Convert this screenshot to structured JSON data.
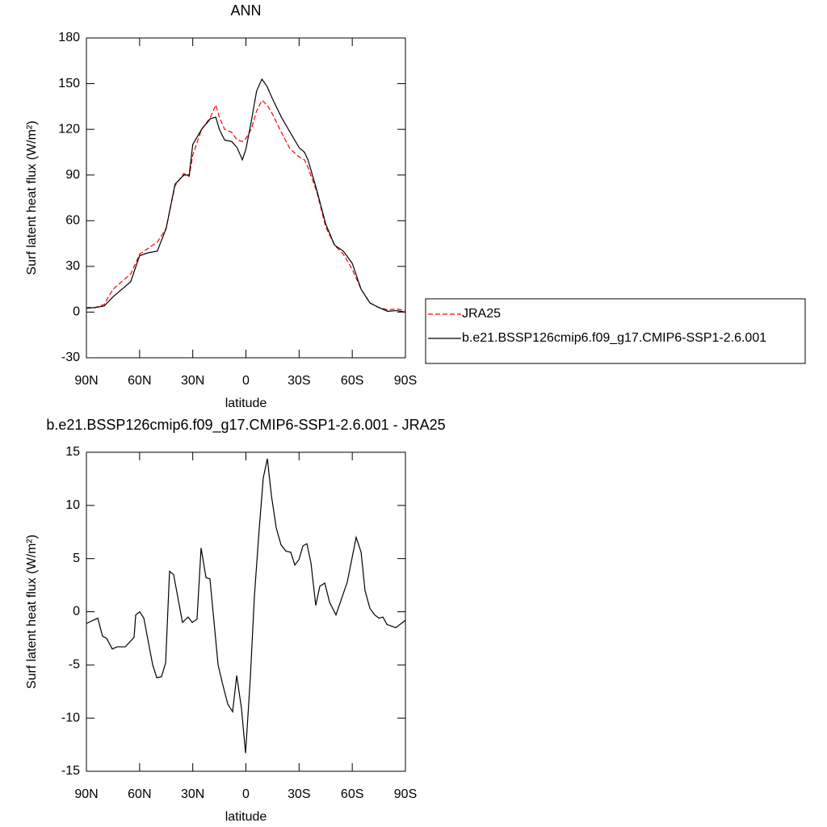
{
  "chart_data": [
    {
      "type": "line",
      "title": "ANN",
      "xlabel": "latitude",
      "ylabel": "Surf latent heat flux (W/m²)",
      "x": [
        90,
        85,
        80,
        75,
        70,
        65,
        60,
        55,
        50,
        45,
        40,
        35,
        32,
        30,
        25,
        20,
        17,
        15,
        12,
        8,
        5,
        2,
        0,
        -3,
        -6,
        -9,
        -12,
        -15,
        -20,
        -25,
        -30,
        -33,
        -35,
        -40,
        -45,
        -50,
        -55,
        -60,
        -65,
        -70,
        -75,
        -80,
        -85,
        -90
      ],
      "series": [
        {
          "name": "JRA25",
          "color": "#ff0000",
          "style": "dashed",
          "values": [
            3,
            3,
            5,
            15,
            20,
            25,
            38,
            42,
            46,
            55,
            83,
            91,
            89,
            103,
            120,
            128,
            136,
            128,
            120,
            118,
            113,
            112,
            114,
            120,
            132,
            139,
            136,
            130,
            118,
            107,
            102,
            100,
            95,
            79,
            56,
            44,
            38,
            28,
            15,
            6,
            3,
            1.5,
            2,
            1
          ]
        },
        {
          "name": "b.e21.BSSP126cmip6.f09_g17.CMIP6-SSP1-2.6.001",
          "color": "#000000",
          "style": "solid",
          "values": [
            2.5,
            3,
            4,
            10,
            15,
            20,
            37,
            39,
            40,
            55,
            84,
            90,
            90,
            110,
            120,
            127,
            128,
            120,
            113,
            112,
            108,
            100,
            107,
            125,
            145,
            153,
            148,
            140,
            128,
            118,
            108,
            105,
            100,
            80,
            58,
            44,
            40,
            32,
            15,
            6,
            3,
            0.5,
            1,
            0
          ]
        }
      ],
      "xlim": [
        90,
        -90
      ],
      "ylim": [
        -30,
        180
      ],
      "xticks": [
        {
          "value": 90,
          "label": "90N"
        },
        {
          "value": 60,
          "label": "60N"
        },
        {
          "value": 30,
          "label": "30N"
        },
        0,
        {
          "value": -30,
          "label": "30S"
        },
        {
          "value": -60,
          "label": "60S"
        },
        {
          "value": -90,
          "label": "90S"
        }
      ],
      "yticks": [
        -30,
        0,
        30,
        60,
        90,
        120,
        150,
        180
      ],
      "legend": "right"
    },
    {
      "type": "line",
      "title": "b.e21.BSSP126cmip6.f09_g17.CMIP6-SSP1-2.6.001 - JRA25",
      "xlabel": "latitude",
      "ylabel": "Surf latent heat flux (W/m²)",
      "x": [
        90,
        83.6,
        80.9,
        78.6,
        75.4,
        72.7,
        68.1,
        63.1,
        62.2,
        59.9,
        57.6,
        52.6,
        50.3,
        47.6,
        45.3,
        43.1,
        40.8,
        35.8,
        32.6,
        30.3,
        27.6,
        25.3,
        22.5,
        20.3,
        15.7,
        13,
        10.2,
        7.5,
        5.2,
        2.5,
        0.2,
        -2.5,
        -4.8,
        -7.5,
        -9.8,
        -12.1,
        -14.4,
        -17.1,
        -19.8,
        -22.6,
        -25.3,
        -27.6,
        -29.9,
        -32.2,
        -34.4,
        -36.7,
        -39.4,
        -41.7,
        -44.5,
        -47.2,
        -50.8,
        -57.2,
        -62.2,
        -65,
        -67.2,
        -70,
        -72.7,
        -75,
        -77.3,
        -79.6,
        -84.6,
        -90
      ],
      "series": [
        {
          "name": "b.e21.BSSP126cmip6.f09_g17.CMIP6-SSP1-2.6.001 - JRA25",
          "color": "#000000",
          "style": "solid",
          "values": [
            -1.1,
            -0.6,
            -2.3,
            -2.5,
            -3.5,
            -3.3,
            -3.3,
            -2.4,
            -0.3,
            0,
            -0.6,
            -5,
            -6.2,
            -6.1,
            -4.8,
            3.8,
            3.5,
            -1,
            -0.5,
            -1,
            -0.7,
            6,
            3.2,
            3.1,
            -5,
            -6.9,
            -8.7,
            -9.4,
            -6,
            -9.1,
            -13.3,
            -6.2,
            1.5,
            7.8,
            12.6,
            14.4,
            10.9,
            7.9,
            6.3,
            5.7,
            5.6,
            4.4,
            4.9,
            6.2,
            6.4,
            4.6,
            0.6,
            2.4,
            2.7,
            0.9,
            -0.3,
            2.8,
            7,
            5.6,
            2,
            0.3,
            -0.3,
            -0.6,
            -0.5,
            -1.2,
            -1.5,
            -0.8
          ]
        }
      ],
      "xlim": [
        90,
        -90
      ],
      "ylim": [
        -15,
        15
      ],
      "xticks": [
        {
          "value": 90,
          "label": "90N"
        },
        {
          "value": 60,
          "label": "60N"
        },
        {
          "value": 30,
          "label": "30N"
        },
        0,
        {
          "value": -30,
          "label": "30S"
        },
        {
          "value": -60,
          "label": "60S"
        },
        {
          "value": -90,
          "label": "90S"
        }
      ],
      "yticks": [
        -15,
        -10,
        -5,
        0,
        5,
        10,
        15
      ]
    }
  ]
}
